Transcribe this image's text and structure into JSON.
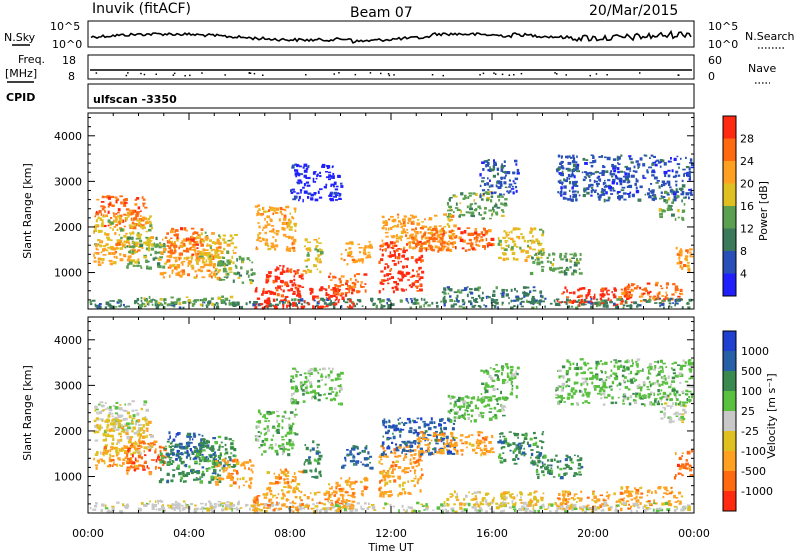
{
  "header": {
    "station": "Inuvik (fitACF)",
    "beam": "Beam 07",
    "date": "20/Mar/2015"
  },
  "top_panels": {
    "nsky_label": "N.Sky",
    "nsky_ticks": [
      "10^5",
      "10^0"
    ],
    "nsearch_label": "N.Search",
    "nsearch_ticks": [
      "10^5",
      "10^0"
    ],
    "freq_label_1": "Freq.",
    "freq_label_2": "[MHz]",
    "freq_ticks": [
      "18",
      "8"
    ],
    "nave_label": "Nave",
    "nave_ticks": [
      "60",
      "0"
    ],
    "cpid_label": "CPID",
    "cpid_text": "ulfscan -3350"
  },
  "colors": {
    "power_scale": [
      "#2020ff",
      "#2850b8",
      "#3a7a5a",
      "#5aa050",
      "#e0c020",
      "#ffa020",
      "#ff6a10",
      "#ff2a10"
    ],
    "velocity_scale": [
      "#ff2a10",
      "#ff6a10",
      "#ffa020",
      "#e0c020",
      "#c8c8c8",
      "#5ac040",
      "#3a8a50",
      "#2860a8",
      "#2040d0"
    ],
    "ground_scatter": "#c0c0c0"
  },
  "chart_data": [
    {
      "type": "heatmap",
      "title": "",
      "xlabel": "",
      "ylabel": "Slant Range [km]",
      "x_ticks": [
        "00:00",
        "04:00",
        "08:00",
        "12:00",
        "16:00",
        "20:00",
        "00:00"
      ],
      "y_ticks": [
        "1000",
        "2000",
        "3000",
        "4000"
      ],
      "ylim": [
        200,
        4500
      ],
      "colorbar_label": "Power [dB]",
      "colorbar_ticks": [
        "4",
        "8",
        "12",
        "16",
        "20",
        "24",
        "28"
      ],
      "colorbar_range": [
        0,
        32
      ]
    },
    {
      "type": "heatmap",
      "title": "",
      "xlabel": "Time UT",
      "ylabel": "Slant Range [km]",
      "x_ticks": [
        "00:00",
        "04:00",
        "08:00",
        "12:00",
        "16:00",
        "20:00",
        "00:00"
      ],
      "y_ticks": [
        "1000",
        "2000",
        "3000",
        "4000"
      ],
      "ylim": [
        200,
        4500
      ],
      "colorbar_label": "Velocity [m s⁻¹]",
      "colorbar_ticks": [
        "1000",
        "500",
        "100",
        "25",
        "-25",
        "-100",
        "-500",
        "-1000"
      ],
      "colorbar_range": [
        -1000,
        1000
      ]
    }
  ]
}
